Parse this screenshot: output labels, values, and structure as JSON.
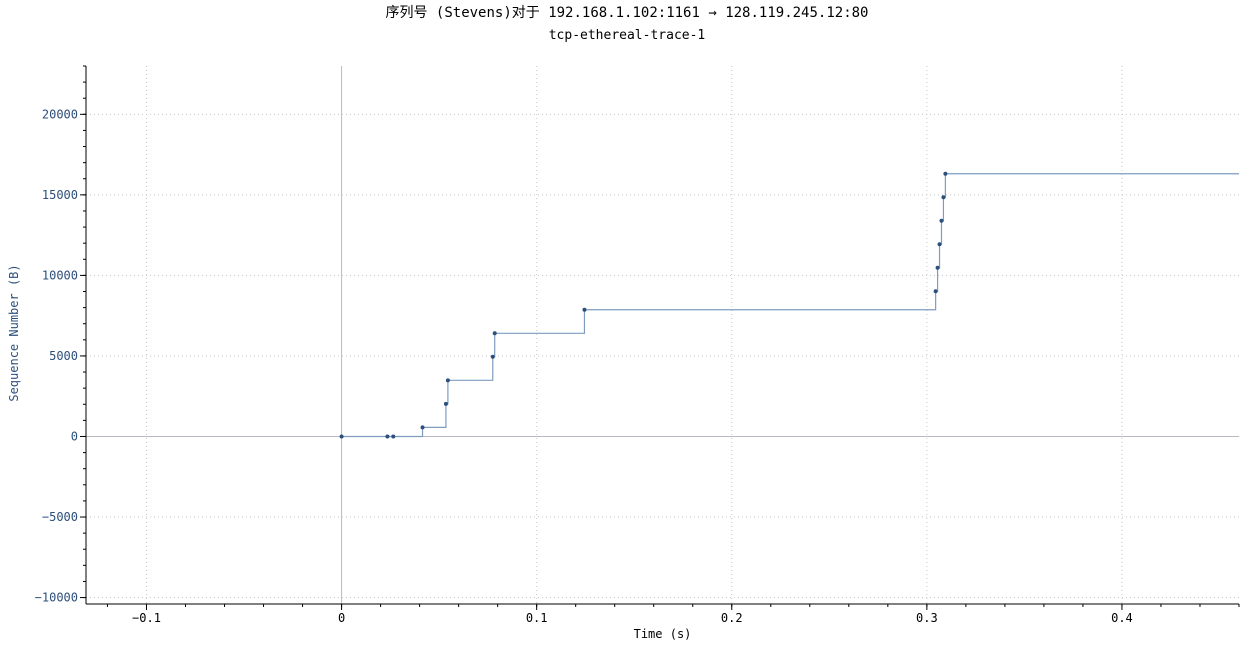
{
  "chart_data": {
    "type": "line",
    "step": true,
    "title": "序列号 (Stevens)对于 192.168.1.102:1161 → 128.119.245.12:80",
    "subtitle": "tcp-ethereal-trace-1",
    "xlabel": "Time (s)",
    "ylabel": "Sequence Number (B)",
    "xlim": [
      -0.131,
      0.46
    ],
    "ylim": [
      -10400,
      23000
    ],
    "x_ticks": [
      "−0.1",
      "0",
      "0.1",
      "0.2",
      "0.3",
      "0.4"
    ],
    "x_tick_values": [
      -0.1,
      0,
      0.1,
      0.2,
      0.3,
      0.4
    ],
    "y_ticks": [
      "−10000",
      "−5000",
      "0",
      "5000",
      "10000",
      "15000",
      "20000"
    ],
    "y_tick_values": [
      -10000,
      -5000,
      0,
      5000,
      10000,
      15000,
      20000
    ],
    "grid": true,
    "colors": {
      "series": "#2c4f7c",
      "line": "#7f9cc0",
      "zero_axis": "#b8bcc2",
      "grid": "#c8c8c8",
      "tick_text": "#2c4f7c"
    },
    "points": [
      {
        "x": 0.0,
        "y": 1
      },
      {
        "x": 0.0235,
        "y": 1
      },
      {
        "x": 0.0265,
        "y": 1
      },
      {
        "x": 0.0415,
        "y": 566
      },
      {
        "x": 0.0535,
        "y": 2026
      },
      {
        "x": 0.0545,
        "y": 3486
      },
      {
        "x": 0.0775,
        "y": 4946
      },
      {
        "x": 0.0785,
        "y": 6406
      },
      {
        "x": 0.1245,
        "y": 7866
      },
      {
        "x": 0.3045,
        "y": 9013
      },
      {
        "x": 0.3055,
        "y": 10473
      },
      {
        "x": 0.3065,
        "y": 11933
      },
      {
        "x": 0.3075,
        "y": 13393
      },
      {
        "x": 0.3085,
        "y": 14853
      },
      {
        "x": 0.3095,
        "y": 16313
      }
    ],
    "line_extends_to_x": 0.46
  }
}
